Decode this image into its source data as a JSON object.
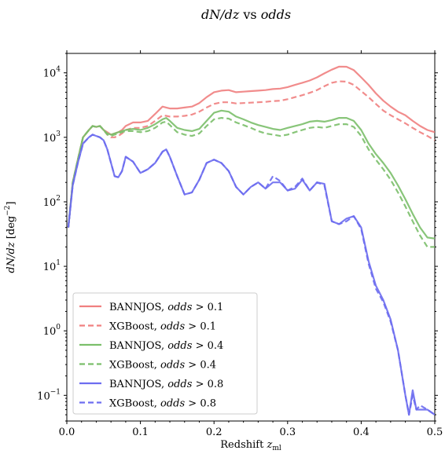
{
  "chart_data": {
    "type": "line",
    "title": "dN/dz vs odds",
    "xlabel": "Redshift z_ml",
    "ylabel": "dN/dz [deg^-2]",
    "xlim": [
      0.0,
      0.5
    ],
    "ylim": [
      0.04,
      20000
    ],
    "yscale": "log",
    "grid": false,
    "legend_position": "lower-left",
    "x_ticks": [
      {
        "value": 0.0,
        "label": "0.0"
      },
      {
        "value": 0.1,
        "label": "0.1"
      },
      {
        "value": 0.2,
        "label": "0.2"
      },
      {
        "value": 0.3,
        "label": "0.3"
      },
      {
        "value": 0.4,
        "label": "0.4"
      },
      {
        "value": 0.5,
        "label": "0.5"
      }
    ],
    "y_ticks": [
      {
        "value": 0.1,
        "base": "10",
        "exp": "−1"
      },
      {
        "value": 1,
        "base": "10",
        "exp": "0"
      },
      {
        "value": 10,
        "base": "10",
        "exp": "1"
      },
      {
        "value": 100,
        "base": "10",
        "exp": "2"
      },
      {
        "value": 1000,
        "base": "10",
        "exp": "3"
      },
      {
        "value": 10000,
        "base": "10",
        "exp": "4"
      }
    ],
    "series": [
      {
        "name": "BANNJOS, odds > 0.1",
        "color": "#f08080",
        "dash": "solid",
        "x": [
          0.002,
          0.008,
          0.015,
          0.022,
          0.03,
          0.035,
          0.04,
          0.045,
          0.05,
          0.055,
          0.06,
          0.065,
          0.07,
          0.075,
          0.08,
          0.09,
          0.1,
          0.11,
          0.12,
          0.13,
          0.135,
          0.14,
          0.15,
          0.16,
          0.17,
          0.18,
          0.19,
          0.2,
          0.21,
          0.22,
          0.23,
          0.24,
          0.25,
          0.26,
          0.27,
          0.28,
          0.29,
          0.3,
          0.31,
          0.32,
          0.33,
          0.34,
          0.35,
          0.36,
          0.37,
          0.38,
          0.39,
          0.4,
          0.41,
          0.42,
          0.43,
          0.44,
          0.45,
          0.46,
          0.47,
          0.48,
          0.49,
          0.5
        ],
        "y": [
          40,
          200,
          450,
          1000,
          1300,
          1500,
          1450,
          1500,
          1300,
          1200,
          1100,
          1150,
          1200,
          1300,
          1500,
          1700,
          1700,
          1800,
          2300,
          3000,
          2900,
          2800,
          2800,
          2900,
          3000,
          3400,
          4200,
          5000,
          5300,
          5400,
          5000,
          5100,
          5200,
          5300,
          5400,
          5600,
          5700,
          6000,
          6500,
          7000,
          7600,
          8500,
          9800,
          11200,
          12500,
          12400,
          11000,
          8500,
          6500,
          4800,
          3700,
          3000,
          2500,
          2200,
          1800,
          1500,
          1300,
          1200
        ]
      },
      {
        "name": "XGBoost, odds > 0.1",
        "color": "#f08080",
        "dash": "dashed",
        "x": [
          0.002,
          0.008,
          0.015,
          0.022,
          0.03,
          0.035,
          0.04,
          0.045,
          0.05,
          0.055,
          0.06,
          0.065,
          0.07,
          0.075,
          0.08,
          0.09,
          0.1,
          0.11,
          0.12,
          0.13,
          0.135,
          0.14,
          0.15,
          0.16,
          0.17,
          0.18,
          0.19,
          0.2,
          0.21,
          0.22,
          0.23,
          0.24,
          0.25,
          0.26,
          0.27,
          0.28,
          0.29,
          0.3,
          0.31,
          0.32,
          0.33,
          0.34,
          0.35,
          0.36,
          0.37,
          0.38,
          0.39,
          0.4,
          0.41,
          0.42,
          0.43,
          0.44,
          0.45,
          0.46,
          0.47,
          0.48,
          0.49,
          0.5
        ],
        "y": [
          40,
          200,
          450,
          1000,
          1300,
          1500,
          1450,
          1500,
          1300,
          1100,
          1000,
          1000,
          1050,
          1150,
          1300,
          1400,
          1400,
          1500,
          1800,
          2200,
          2150,
          2100,
          2100,
          2150,
          2250,
          2500,
          2900,
          3300,
          3500,
          3500,
          3350,
          3400,
          3450,
          3500,
          3550,
          3650,
          3700,
          3900,
          4200,
          4500,
          4900,
          5400,
          6200,
          7000,
          7400,
          7300,
          6500,
          5200,
          4200,
          3300,
          2600,
          2200,
          1900,
          1650,
          1400,
          1200,
          1050,
          900
        ]
      },
      {
        "name": "BANNJOS, odds > 0.4",
        "color": "#7bbf6a",
        "dash": "solid",
        "x": [
          0.002,
          0.008,
          0.015,
          0.022,
          0.03,
          0.035,
          0.04,
          0.045,
          0.05,
          0.055,
          0.06,
          0.065,
          0.07,
          0.075,
          0.08,
          0.09,
          0.1,
          0.11,
          0.12,
          0.13,
          0.135,
          0.14,
          0.15,
          0.16,
          0.17,
          0.18,
          0.19,
          0.2,
          0.21,
          0.22,
          0.23,
          0.24,
          0.25,
          0.26,
          0.27,
          0.28,
          0.29,
          0.3,
          0.31,
          0.32,
          0.33,
          0.34,
          0.35,
          0.36,
          0.37,
          0.38,
          0.39,
          0.4,
          0.41,
          0.42,
          0.43,
          0.44,
          0.45,
          0.46,
          0.47,
          0.48,
          0.49,
          0.5
        ],
        "y": [
          40,
          200,
          450,
          1000,
          1300,
          1500,
          1450,
          1500,
          1300,
          1150,
          1100,
          1150,
          1200,
          1250,
          1300,
          1350,
          1300,
          1400,
          1600,
          1900,
          2000,
          1800,
          1400,
          1300,
          1250,
          1350,
          1800,
          2400,
          2600,
          2500,
          2100,
          1900,
          1700,
          1550,
          1450,
          1350,
          1300,
          1400,
          1500,
          1600,
          1750,
          1800,
          1750,
          1850,
          2000,
          2000,
          1800,
          1300,
          800,
          550,
          400,
          280,
          180,
          110,
          65,
          40,
          28,
          27
        ]
      },
      {
        "name": "XGBoost, odds > 0.4",
        "color": "#7bbf6a",
        "dash": "dashed",
        "x": [
          0.002,
          0.008,
          0.015,
          0.022,
          0.03,
          0.035,
          0.04,
          0.045,
          0.05,
          0.055,
          0.06,
          0.065,
          0.07,
          0.075,
          0.08,
          0.09,
          0.1,
          0.11,
          0.12,
          0.13,
          0.135,
          0.14,
          0.15,
          0.16,
          0.17,
          0.18,
          0.19,
          0.2,
          0.21,
          0.22,
          0.23,
          0.24,
          0.25,
          0.26,
          0.27,
          0.28,
          0.29,
          0.3,
          0.31,
          0.32,
          0.33,
          0.34,
          0.35,
          0.36,
          0.37,
          0.38,
          0.39,
          0.4,
          0.41,
          0.42,
          0.43,
          0.44,
          0.45,
          0.46,
          0.47,
          0.48,
          0.49,
          0.5
        ],
        "y": [
          40,
          200,
          450,
          1000,
          1300,
          1500,
          1450,
          1500,
          1300,
          1100,
          1050,
          1100,
          1150,
          1200,
          1250,
          1250,
          1200,
          1250,
          1400,
          1700,
          1750,
          1550,
          1200,
          1100,
          1050,
          1150,
          1500,
          1900,
          2000,
          1950,
          1700,
          1550,
          1400,
          1250,
          1150,
          1100,
          1050,
          1100,
          1200,
          1300,
          1400,
          1450,
          1400,
          1500,
          1600,
          1600,
          1450,
          1050,
          650,
          450,
          320,
          220,
          140,
          85,
          50,
          30,
          20,
          20
        ]
      },
      {
        "name": "BANNJOS, odds > 0.8",
        "color": "#6d6df0",
        "dash": "solid",
        "x": [
          0.002,
          0.008,
          0.015,
          0.022,
          0.03,
          0.035,
          0.04,
          0.045,
          0.05,
          0.055,
          0.06,
          0.065,
          0.07,
          0.075,
          0.08,
          0.09,
          0.1,
          0.11,
          0.12,
          0.13,
          0.135,
          0.14,
          0.15,
          0.16,
          0.17,
          0.18,
          0.19,
          0.2,
          0.21,
          0.22,
          0.23,
          0.24,
          0.25,
          0.26,
          0.27,
          0.28,
          0.29,
          0.3,
          0.31,
          0.32,
          0.33,
          0.34,
          0.35,
          0.36,
          0.37,
          0.38,
          0.39,
          0.4,
          0.41,
          0.42,
          0.43,
          0.44,
          0.45,
          0.46,
          0.465,
          0.47,
          0.475,
          0.48,
          0.49,
          0.5
        ],
        "y": [
          40,
          180,
          400,
          800,
          1000,
          1100,
          1050,
          1000,
          900,
          650,
          400,
          250,
          240,
          300,
          500,
          420,
          280,
          320,
          400,
          600,
          650,
          500,
          250,
          130,
          140,
          220,
          400,
          450,
          400,
          300,
          170,
          130,
          170,
          200,
          160,
          200,
          200,
          150,
          160,
          220,
          150,
          200,
          190,
          50,
          45,
          55,
          60,
          40,
          12,
          5,
          3,
          1.5,
          0.5,
          0.1,
          0.05,
          0.12,
          0.06,
          0.06,
          0.06,
          0.05
        ]
      },
      {
        "name": "XGBoost, odds > 0.8",
        "color": "#6d6df0",
        "dash": "dashed",
        "x": [
          0.002,
          0.008,
          0.015,
          0.022,
          0.03,
          0.035,
          0.04,
          0.045,
          0.05,
          0.055,
          0.06,
          0.065,
          0.07,
          0.075,
          0.08,
          0.09,
          0.1,
          0.11,
          0.12,
          0.13,
          0.135,
          0.14,
          0.15,
          0.16,
          0.17,
          0.18,
          0.19,
          0.2,
          0.21,
          0.22,
          0.23,
          0.24,
          0.25,
          0.26,
          0.27,
          0.28,
          0.29,
          0.3,
          0.31,
          0.32,
          0.33,
          0.34,
          0.35,
          0.36,
          0.37,
          0.38,
          0.39,
          0.4,
          0.41,
          0.42,
          0.43,
          0.44,
          0.45,
          0.46,
          0.465,
          0.47,
          0.475,
          0.48,
          0.49,
          0.5
        ],
        "y": [
          40,
          180,
          400,
          800,
          1000,
          1100,
          1050,
          1000,
          900,
          650,
          400,
          250,
          240,
          300,
          500,
          420,
          280,
          320,
          400,
          600,
          650,
          500,
          250,
          130,
          140,
          220,
          400,
          450,
          400,
          300,
          170,
          130,
          170,
          200,
          160,
          250,
          210,
          150,
          170,
          230,
          150,
          200,
          180,
          50,
          45,
          50,
          60,
          38,
          11,
          4.5,
          2.8,
          1.4,
          0.5,
          0.1,
          0.05,
          0.1,
          0.06,
          0.07,
          0.06,
          0.05
        ]
      }
    ]
  }
}
